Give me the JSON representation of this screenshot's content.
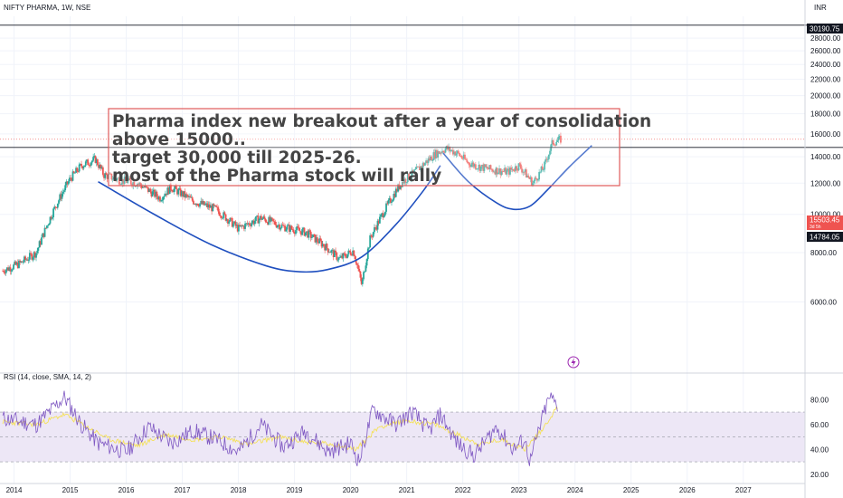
{
  "header": {
    "symbol_label": "NIFTY PHARMA, 1W, NSE",
    "currency": "INR"
  },
  "annotation": {
    "lines": [
      "Pharma index new breakout after a year of consolidation",
      "above 15000..",
      "target 30,000 till 2025-26.",
      "most of the Pharma stock will rally"
    ],
    "border_color": "#e05a5a"
  },
  "price_tags": {
    "target": "30190.75",
    "current": "15503.45",
    "current_sub": "3d 5h",
    "support": "14784.05"
  },
  "rsi_label": "RSI (14, close, SMA, 14, 2)",
  "colors": {
    "up": "#26a69a",
    "down": "#ef5350",
    "cup_line": "#1f4fbf",
    "rsi_line": "#7e57c2",
    "rsi_sma": "#f5e15a",
    "rsi_band": "#ede7f6"
  },
  "chart_data": [
    {
      "type": "candlestick",
      "title": "NIFTY PHARMA, 1W, NSE",
      "x_ticks": [
        "2014",
        "2015",
        "2016",
        "2017",
        "2018",
        "2019",
        "2020",
        "2021",
        "2022",
        "2023",
        "2024",
        "2025",
        "2026",
        "2027"
      ],
      "y_ticks": [
        6000,
        8000,
        10000,
        12000,
        14000,
        16000,
        18000,
        20000,
        22000,
        24000,
        26000,
        28000
      ],
      "y_tick_labels": [
        "6000.00",
        "8000.00",
        "10000.00",
        "12000.00",
        "14000.00",
        "16000.00",
        "18000.00",
        "20000.00",
        "22000.00",
        "24000.00",
        "26000.00",
        "28000.00"
      ],
      "ylim": [
        4000,
        31800
      ],
      "xlim": [
        2013.75,
        2028.1
      ],
      "y_scale": "log",
      "path_x": [
        2013.8,
        2014.1,
        2014.4,
        2014.7,
        2015.0,
        2015.2,
        2015.45,
        2015.6,
        2015.9,
        2016.2,
        2016.6,
        2016.8,
        2017.2,
        2017.6,
        2018.0,
        2018.4,
        2018.8,
        2019.2,
        2019.5,
        2019.8,
        2020.05,
        2020.2,
        2020.35,
        2020.6,
        2020.9,
        2021.2,
        2021.5,
        2021.7,
        2021.9,
        2022.1,
        2022.3,
        2022.5,
        2022.8,
        2023.0,
        2023.25,
        2023.45,
        2023.6,
        2023.75
      ],
      "path_y": [
        7200,
        7500,
        8000,
        10200,
        12300,
        13300,
        13800,
        12600,
        12200,
        12000,
        11000,
        11700,
        10800,
        10300,
        9200,
        9800,
        9300,
        9000,
        8400,
        7700,
        8100,
        6600,
        8700,
        10200,
        12000,
        13000,
        14200,
        14700,
        14300,
        13500,
        13200,
        13000,
        12800,
        13300,
        12000,
        13200,
        15200,
        15503
      ],
      "levels": {
        "target": 30190.75,
        "current": 15503.45,
        "support": 14784.05
      },
      "cup_pattern": {
        "arc_1": [
          [
            2015.5,
            12100
          ],
          [
            2016.5,
            10000
          ],
          [
            2017.5,
            8400
          ],
          [
            2018.5,
            7400
          ],
          [
            2019.1,
            7150
          ],
          [
            2019.6,
            7250
          ],
          [
            2020.2,
            7800
          ],
          [
            2020.8,
            9400
          ],
          [
            2021.3,
            11500
          ],
          [
            2021.6,
            13300
          ]
        ],
        "arc_2": [
          [
            2021.65,
            14300
          ],
          [
            2022.1,
            12100
          ],
          [
            2022.6,
            10700
          ],
          [
            2022.9,
            10300
          ],
          [
            2023.2,
            10500
          ],
          [
            2023.5,
            11500
          ],
          [
            2023.9,
            13200
          ],
          [
            2024.3,
            14950
          ]
        ]
      }
    },
    {
      "type": "line",
      "title": "RSI (14, close, SMA, 14, 2)",
      "y_ticks": [
        20,
        40,
        60,
        80
      ],
      "y_tick_labels": [
        "20.00",
        "40.00",
        "60.00",
        "80.00"
      ],
      "ylim": [
        17,
        94
      ],
      "bands": [
        30,
        50,
        70
      ],
      "series": [
        {
          "name": "RSI",
          "x": [
            2013.8,
            2014.4,
            2014.9,
            2015.2,
            2015.5,
            2016.0,
            2016.4,
            2016.8,
            2017.2,
            2017.6,
            2018.0,
            2018.4,
            2018.8,
            2019.2,
            2019.6,
            2020.0,
            2020.15,
            2020.4,
            2020.8,
            2021.1,
            2021.4,
            2021.6,
            2021.9,
            2022.2,
            2022.6,
            2022.9,
            2023.1,
            2023.2,
            2023.45,
            2023.55,
            2023.7
          ],
          "y": [
            65,
            60,
            82,
            60,
            45,
            38,
            58,
            45,
            55,
            48,
            38,
            60,
            42,
            55,
            38,
            45,
            30,
            72,
            60,
            70,
            55,
            68,
            45,
            35,
            58,
            40,
            48,
            30,
            70,
            82,
            75
          ]
        },
        {
          "name": "SMA",
          "x": [
            2013.8,
            2014.4,
            2014.9,
            2015.3,
            2015.7,
            2016.2,
            2016.7,
            2017.2,
            2017.7,
            2018.2,
            2018.7,
            2019.2,
            2019.7,
            2020.1,
            2020.5,
            2021.0,
            2021.5,
            2021.9,
            2022.3,
            2022.7,
            2023.1,
            2023.4,
            2023.7
          ],
          "y": [
            62,
            60,
            68,
            58,
            48,
            43,
            52,
            48,
            50,
            44,
            50,
            46,
            44,
            40,
            58,
            63,
            60,
            52,
            44,
            48,
            40,
            55,
            75
          ]
        }
      ]
    }
  ]
}
